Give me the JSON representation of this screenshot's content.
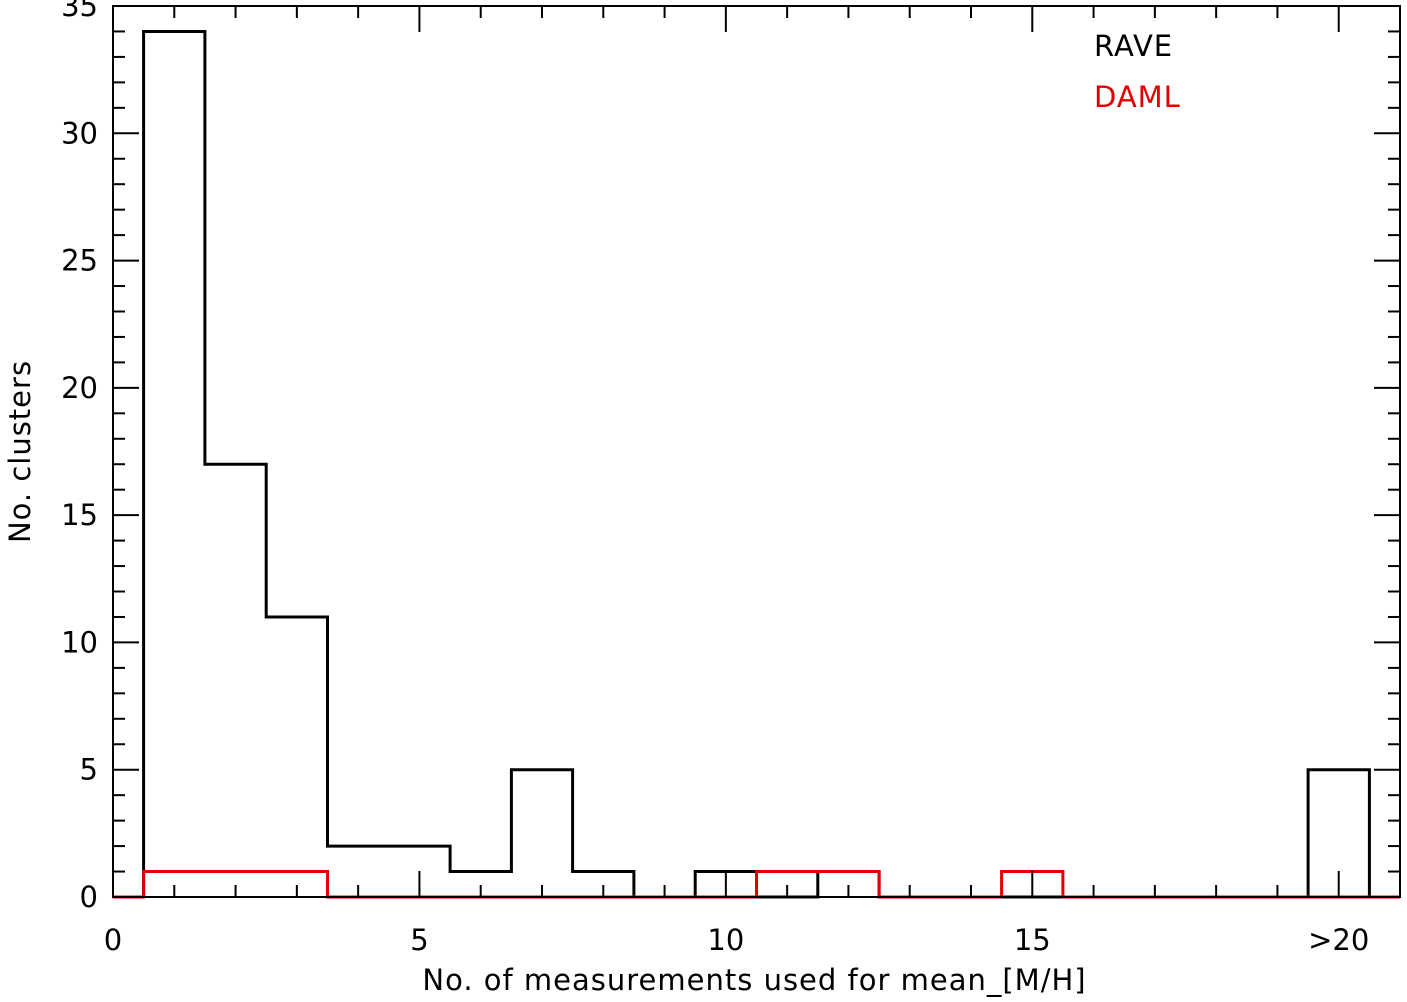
{
  "chart_data": {
    "type": "histogram",
    "xlabel": "No. of measurements used for mean_[M/H]",
    "ylabel": "No. clusters",
    "xlim": [
      0,
      21
    ],
    "ylim": [
      0,
      35
    ],
    "x_ticks": [
      {
        "value": 0,
        "label": "0"
      },
      {
        "value": 5,
        "label": "5"
      },
      {
        "value": 10,
        "label": "10"
      },
      {
        "value": 15,
        "label": "15"
      },
      {
        "value": 20,
        "label": ">20"
      }
    ],
    "y_ticks": [
      {
        "value": 0,
        "label": "0"
      },
      {
        "value": 5,
        "label": "5"
      },
      {
        "value": 10,
        "label": "10"
      },
      {
        "value": 15,
        "label": "15"
      },
      {
        "value": 20,
        "label": "20"
      },
      {
        "value": 25,
        "label": "25"
      },
      {
        "value": 30,
        "label": "30"
      },
      {
        "value": 35,
        "label": "35"
      }
    ],
    "x_minor_step": 1,
    "y_minor_step": 1,
    "bins": [
      1,
      2,
      3,
      4,
      5,
      6,
      7,
      8,
      9,
      10,
      11,
      12,
      13,
      14,
      15,
      16,
      17,
      18,
      19,
      20
    ],
    "series": [
      {
        "name": "RAVE",
        "color": "#000000",
        "values": [
          34,
          17,
          11,
          2,
          2,
          1,
          5,
          1,
          0,
          1,
          0,
          1,
          0,
          0,
          0,
          0,
          0,
          0,
          0,
          5
        ]
      },
      {
        "name": "DAML",
        "color": "#e00000",
        "values": [
          1,
          1,
          1,
          0,
          0,
          0,
          0,
          0,
          0,
          0,
          1,
          1,
          0,
          0,
          1,
          0,
          0,
          0,
          0,
          0
        ]
      }
    ],
    "legend_position": "top-right",
    "grid": false
  }
}
